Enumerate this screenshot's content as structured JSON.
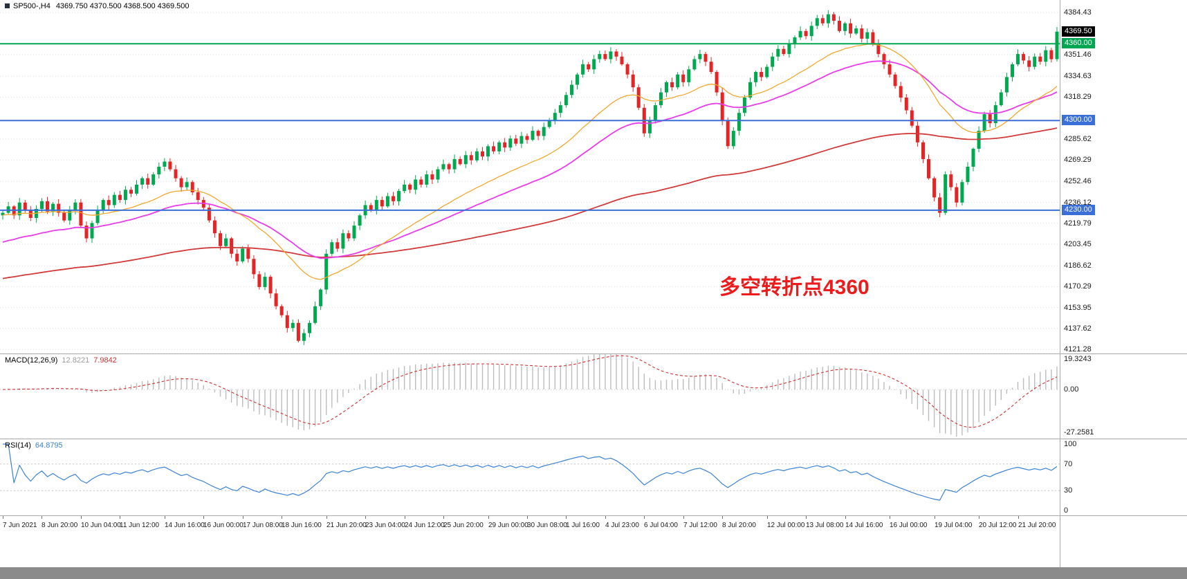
{
  "header": {
    "symbol": "SP500-,H4",
    "values": "4369.750 4370.500 4368.500 4369.500"
  },
  "annotation": {
    "text": "多空转折点4360"
  },
  "colors": {
    "up": "#00a84f",
    "down": "#e42525",
    "ma_fast": "#f2a72e",
    "ma_mid": "#e83ce8",
    "ma_slow": "#d23939",
    "hline_green": "#00a651",
    "hline_blue": "#3a6fd8",
    "grid": "#dadada",
    "macd_hist": "#bcbcbc",
    "macd_signal": "#d03030",
    "rsi_line": "#3b82d6"
  },
  "price_axis": {
    "ticks": [
      4384.43,
      4351.46,
      4334.63,
      4318.29,
      4285.62,
      4269.29,
      4252.46,
      4236.12,
      4219.79,
      4203.45,
      4186.62,
      4170.29,
      4153.95,
      4137.62,
      4121.28
    ],
    "badges": [
      {
        "text": "4369.50",
        "price": 4369.5,
        "type": "current"
      },
      {
        "text": "4360.00",
        "price": 4360.0,
        "type": "green"
      },
      {
        "text": "4300.00",
        "price": 4300.0,
        "type": "blue"
      },
      {
        "text": "4230.00",
        "price": 4230.0,
        "type": "blue"
      }
    ]
  },
  "hlines": [
    {
      "price": 4360.0,
      "type": "green"
    },
    {
      "price": 4300.0,
      "type": "blue"
    },
    {
      "price": 4230.0,
      "type": "blue"
    }
  ],
  "macd_panel": {
    "label": "MACD(12,26,9)",
    "macd_value": "12.8221",
    "signal_value": "7.9842",
    "axis_ticks": [
      "19.3243",
      "0.00",
      "-27.2581"
    ],
    "ylim_draw": [
      -28.5,
      19.8
    ]
  },
  "rsi_panel": {
    "label": "RSI(14)",
    "value": "64.8795",
    "axis_ticks": [
      "100",
      "70",
      "30",
      "0"
    ],
    "levels": [
      70,
      30
    ]
  },
  "time_axis": {
    "ticks": [
      {
        "label": "7 Jun 2021",
        "bar": 0
      },
      {
        "label": "8 Jun 20:00",
        "bar": 7
      },
      {
        "label": "10 Jun 04:00",
        "bar": 14
      },
      {
        "label": "11 Jun 12:00",
        "bar": 21
      },
      {
        "label": "14 Jun 16:00",
        "bar": 29
      },
      {
        "label": "16 Jun 00:00",
        "bar": 36
      },
      {
        "label": "17 Jun 08:00",
        "bar": 43
      },
      {
        "label": "18 Jun 16:00",
        "bar": 50
      },
      {
        "label": "21 Jun 20:00",
        "bar": 58
      },
      {
        "label": "23 Jun 04:00",
        "bar": 65
      },
      {
        "label": "24 Jun 12:00",
        "bar": 72
      },
      {
        "label": "25 Jun 20:00",
        "bar": 79
      },
      {
        "label": "29 Jun 00:00",
        "bar": 87
      },
      {
        "label": "30 Jun 08:00",
        "bar": 94
      },
      {
        "label": "1 Jul 16:00",
        "bar": 101
      },
      {
        "label": "4 Jul 23:00",
        "bar": 108
      },
      {
        "label": "6 Jul 04:00",
        "bar": 115
      },
      {
        "label": "7 Jul 12:00",
        "bar": 122
      },
      {
        "label": "8 Jul 20:00",
        "bar": 129
      },
      {
        "label": "12 Jul 00:00",
        "bar": 137
      },
      {
        "label": "13 Jul 08:00",
        "bar": 144
      },
      {
        "label": "14 Jul 16:00",
        "bar": 151
      },
      {
        "label": "16 Jul 00:00",
        "bar": 159
      },
      {
        "label": "19 Jul 04:00",
        "bar": 167
      },
      {
        "label": "20 Jul 12:00",
        "bar": 175
      },
      {
        "label": "21 Jul 20:00",
        "bar": 182
      }
    ]
  },
  "chart_data": {
    "type": "candlestick",
    "symbol": "SP500-",
    "timeframe": "H4",
    "title": "SP500-,H4",
    "last_bar": {
      "open": 4369.75,
      "high": 4370.5,
      "low": 4368.5,
      "close": 4369.5
    },
    "ylim": [
      4118.1,
      4394.2
    ],
    "first_open": 4226,
    "closes": [
      4228,
      4233,
      4226,
      4236,
      4230,
      4224,
      4231,
      4237,
      4229,
      4235,
      4228,
      4222,
      4230,
      4236,
      4218,
      4208,
      4220,
      4230,
      4238,
      4234,
      4242,
      4238,
      4246,
      4243,
      4250,
      4255,
      4250,
      4258,
      4264,
      4268,
      4262,
      4255,
      4248,
      4252,
      4244,
      4238,
      4232,
      4222,
      4212,
      4202,
      4208,
      4196,
      4190,
      4200,
      4192,
      4180,
      4170,
      4178,
      4165,
      4155,
      4148,
      4138,
      4142,
      4128,
      4134,
      4142,
      4155,
      4168,
      4196,
      4205,
      4200,
      4212,
      4208,
      4218,
      4226,
      4234,
      4230,
      4238,
      4233,
      4241,
      4237,
      4245,
      4250,
      4246,
      4254,
      4250,
      4258,
      4254,
      4262,
      4266,
      4262,
      4270,
      4266,
      4273,
      4269,
      4276,
      4272,
      4280,
      4276,
      4283,
      4279,
      4286,
      4282,
      4288,
      4285,
      4292,
      4288,
      4295,
      4300,
      4306,
      4312,
      4320,
      4328,
      4336,
      4344,
      4340,
      4348,
      4352,
      4348,
      4354,
      4350,
      4344,
      4336,
      4326,
      4310,
      4290,
      4300,
      4312,
      4322,
      4330,
      4326,
      4336,
      4330,
      4340,
      4348,
      4352,
      4346,
      4338,
      4322,
      4300,
      4280,
      4292,
      4306,
      4318,
      4330,
      4338,
      4334,
      4342,
      4350,
      4356,
      4352,
      4360,
      4365,
      4370,
      4366,
      4374,
      4380,
      4376,
      4383,
      4378,
      4370,
      4376,
      4368,
      4372,
      4364,
      4369,
      4360,
      4352,
      4344,
      4336,
      4327,
      4318,
      4308,
      4296,
      4283,
      4270,
      4255,
      4240,
      4228,
      4258,
      4248,
      4236,
      4252,
      4264,
      4278,
      4292,
      4305,
      4298,
      4312,
      4322,
      4334,
      4344,
      4352,
      4347,
      4342,
      4350,
      4346,
      4355,
      4348,
      4369.5
    ],
    "indicators": {
      "ma_fast_alpha": 0.08,
      "ma_fast_seed": 4226,
      "ma_mid_alpha": 0.045,
      "ma_mid_seed": 4204,
      "ma_slow_alpha": 0.013,
      "ma_slow_seed": 4176,
      "macd_periods": [
        12,
        26,
        9
      ],
      "macd_last": [
        12.8221,
        7.9842
      ],
      "macd_axis_range": [
        -27.2581,
        19.3243
      ],
      "rsi_period": 14,
      "rsi_last": 64.8795
    }
  }
}
